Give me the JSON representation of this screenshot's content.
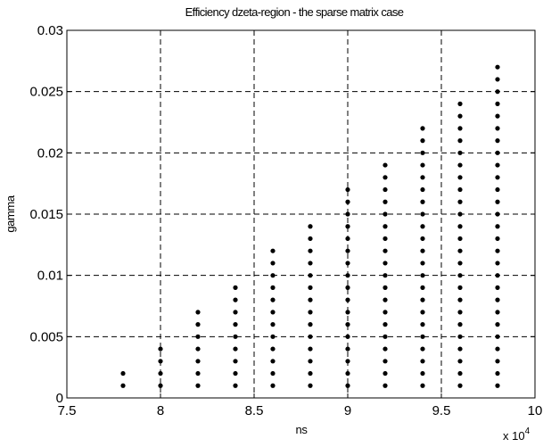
{
  "chart_data": {
    "type": "scatter",
    "title": "Efficiency dzeta-region - the sparse matrix case",
    "xlabel": "ns",
    "ylabel": "gamma",
    "x_exponent_label": "x 10",
    "x_exponent_power": "4",
    "xlim": [
      75000,
      100000
    ],
    "ylim": [
      0,
      0.03
    ],
    "x_ticks": [
      75000,
      80000,
      85000,
      90000,
      95000,
      100000
    ],
    "x_tick_labels": [
      "7.5",
      "8",
      "8.5",
      "9",
      "9.5",
      "10"
    ],
    "y_ticks": [
      0,
      0.005,
      0.01,
      0.015,
      0.02,
      0.025,
      0.03
    ],
    "y_tick_labels": [
      "0",
      "0.005",
      "0.01",
      "0.015",
      "0.02",
      "0.025",
      "0.03"
    ],
    "grid": true,
    "grid_style": "dashed",
    "legend": false,
    "marker_color": "#000000",
    "y_step": 0.001,
    "y_start": 0.001,
    "columns": [
      {
        "x": 78000,
        "y_max": 0.002
      },
      {
        "x": 80000,
        "y_max": 0.004
      },
      {
        "x": 82000,
        "y_max": 0.007
      },
      {
        "x": 84000,
        "y_max": 0.009
      },
      {
        "x": 86000,
        "y_max": 0.012
      },
      {
        "x": 88000,
        "y_max": 0.014
      },
      {
        "x": 90000,
        "y_max": 0.017
      },
      {
        "x": 92000,
        "y_max": 0.019
      },
      {
        "x": 94000,
        "y_max": 0.022
      },
      {
        "x": 96000,
        "y_max": 0.024
      },
      {
        "x": 98000,
        "y_max": 0.027
      }
    ]
  }
}
